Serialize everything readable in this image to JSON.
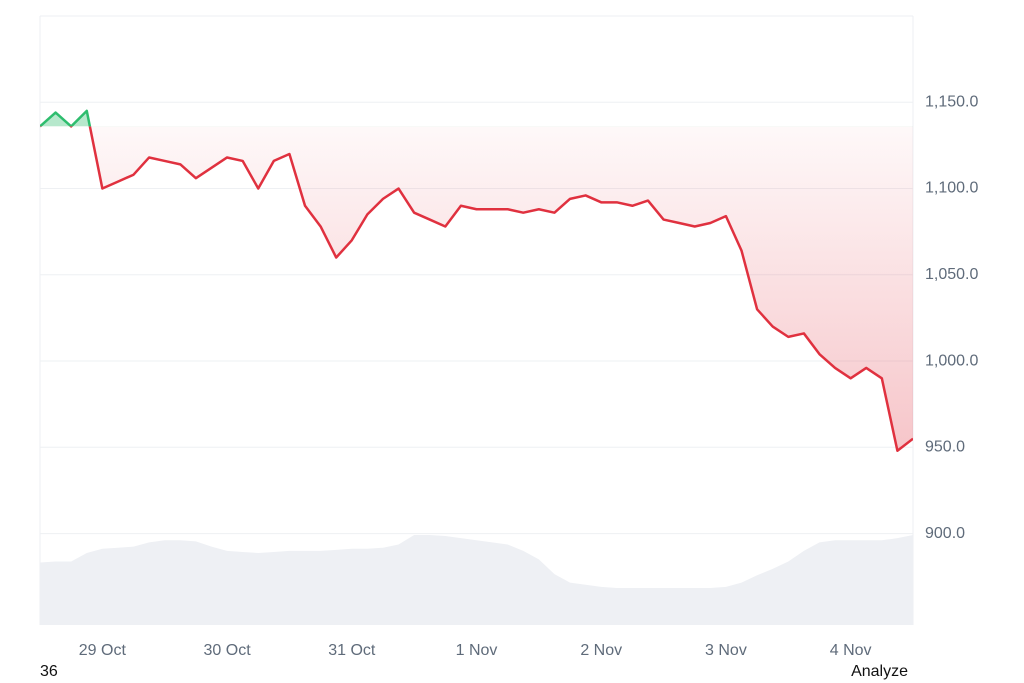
{
  "chart_data": {
    "type": "line",
    "categories": [
      null,
      null,
      null,
      null,
      "29 Oct",
      null,
      null,
      null,
      null,
      null,
      null,
      null,
      "30 Oct",
      null,
      null,
      null,
      null,
      null,
      null,
      null,
      "31 Oct",
      null,
      null,
      null,
      null,
      null,
      null,
      null,
      "1 Nov",
      null,
      null,
      null,
      null,
      null,
      null,
      null,
      "2 Nov",
      null,
      null,
      null,
      null,
      null,
      null,
      null,
      "3 Nov",
      null,
      null,
      null,
      null,
      null,
      null,
      null,
      "4 Nov",
      null,
      null,
      null,
      null
    ],
    "series": [
      {
        "name": "price",
        "axis": "y",
        "color": "#e0313f",
        "up_color": "#2ebd6e",
        "values": [
          1136,
          1144,
          1136,
          1145,
          1100,
          1104,
          1108,
          1118,
          1116,
          1114,
          1106,
          1112,
          1118,
          1116,
          1100,
          1116,
          1120,
          1090,
          1078,
          1060,
          1070,
          1085,
          1094,
          1100,
          1086,
          1082,
          1078,
          1090,
          1088,
          1088,
          1088,
          1086,
          1088,
          1086,
          1094,
          1096,
          1092,
          1092,
          1090,
          1093,
          1082,
          1080,
          1078,
          1080,
          1084,
          1064,
          1030,
          1020,
          1014,
          1016,
          1004,
          996,
          990,
          996,
          990,
          948,
          955
        ]
      },
      {
        "name": "volume",
        "color": "#eef0f4",
        "values": [
          59,
          60,
          60,
          68,
          72,
          73,
          74,
          78,
          80,
          80,
          79,
          74,
          70,
          69,
          68,
          69,
          70,
          70,
          70,
          71,
          72,
          72,
          73,
          76,
          85,
          85,
          84,
          82,
          80,
          78,
          76,
          70,
          62,
          48,
          40,
          38,
          36,
          35,
          35,
          35,
          35,
          35,
          35,
          35,
          36,
          40,
          47,
          53,
          60,
          70,
          78,
          80,
          80,
          80,
          80,
          82,
          85
        ]
      }
    ],
    "ylim": [
      847,
      1200
    ],
    "yticks": [
      {
        "value": 900,
        "label": "900.0"
      },
      {
        "value": 950,
        "label": "950.0"
      },
      {
        "value": 1000,
        "label": "1,000.0"
      },
      {
        "value": 1050,
        "label": "1,050.0"
      },
      {
        "value": 1100,
        "label": "1,100.0"
      },
      {
        "value": 1150,
        "label": "1,150.0"
      }
    ],
    "grid": true,
    "footer_left": "36",
    "footer_right": "Analyze"
  }
}
